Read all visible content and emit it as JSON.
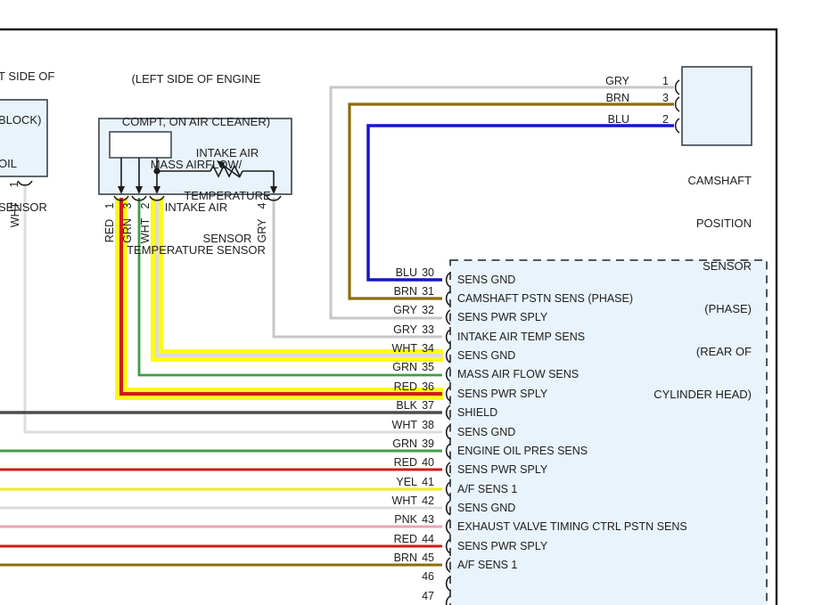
{
  "palette": {
    "RED": "#d01a1a",
    "GRN": "#3f9e45",
    "WHT": "#dcdcdc",
    "GRY": "#c7c7c7",
    "BLU": "#1715c8",
    "BRN": "#8a6d0c",
    "BLK": "#4c4c4c",
    "YEL": "#efeb24",
    "PNK": "#eda2b4",
    "highlight": "#fdf900",
    "box_fill": "#e9f3fb",
    "box_border": "#39424a",
    "line": "#1c1c1c"
  },
  "left_sensor": {
    "label_lines": [
      "T SIDE OF",
      "BLOCK)",
      "OIL",
      "SENSOR"
    ],
    "pin": {
      "number": "1",
      "color": "WHT"
    }
  },
  "maf_sensor": {
    "header_lines": [
      "(LEFT SIDE OF ENGINE",
      "COMPT, ON AIR CLEANER)",
      "MASS AIRFLOW/",
      "INTAKE AIR",
      "TEMPERATURE SENSOR"
    ],
    "inner_label_lines": [
      "INTAKE AIR",
      "TEMPERATURE",
      "SENSOR"
    ],
    "pins": [
      {
        "number": "1",
        "color": "RED",
        "highlight": true
      },
      {
        "number": "3",
        "color": "GRN"
      },
      {
        "number": "2",
        "color": "WHT",
        "highlight": true
      },
      {
        "number": "4",
        "color": "GRY"
      }
    ]
  },
  "camshaft_sensor": {
    "caption_lines": [
      "CAMSHAFT",
      "POSITION",
      "SENSOR",
      "(PHASE)",
      "(REAR OF",
      "CYLINDER HEAD)"
    ],
    "pins": [
      {
        "number": "1",
        "color": "GRY"
      },
      {
        "number": "3",
        "color": "BRN"
      },
      {
        "number": "2",
        "color": "BLU"
      }
    ]
  },
  "ecm": {
    "pins": [
      {
        "number": "30",
        "color": "BLU",
        "label": "SENS GND"
      },
      {
        "number": "31",
        "color": "BRN",
        "label": "CAMSHAFT PSTN SENS (PHASE)"
      },
      {
        "number": "32",
        "color": "GRY",
        "label": "SENS PWR SPLY"
      },
      {
        "number": "33",
        "color": "GRY",
        "label": "INTAKE AIR TEMP SENS"
      },
      {
        "number": "34",
        "color": "WHT",
        "label": "SENS GND",
        "highlight": true
      },
      {
        "number": "35",
        "color": "GRN",
        "label": "MASS AIR FLOW SENS"
      },
      {
        "number": "36",
        "color": "RED",
        "label": "SENS PWR SPLY",
        "highlight": true
      },
      {
        "number": "37",
        "color": "BLK",
        "label": "SHIELD"
      },
      {
        "number": "38",
        "color": "WHT",
        "label": "SENS GND"
      },
      {
        "number": "39",
        "color": "GRN",
        "label": "ENGINE OIL PRES SENS"
      },
      {
        "number": "40",
        "color": "RED",
        "label": "SENS PWR SPLY"
      },
      {
        "number": "41",
        "color": "YEL",
        "label": "A/F SENS 1"
      },
      {
        "number": "42",
        "color": "WHT",
        "label": "SENS GND"
      },
      {
        "number": "43",
        "color": "PNK",
        "label": "EXHAUST VALVE TIMING CTRL PSTN SENS"
      },
      {
        "number": "44",
        "color": "RED",
        "label": "SENS PWR SPLY"
      },
      {
        "number": "45",
        "color": "BRN",
        "label": "A/F SENS 1"
      },
      {
        "number": "46",
        "color": "",
        "label": ""
      },
      {
        "number": "47",
        "color": "",
        "label": ""
      }
    ]
  }
}
